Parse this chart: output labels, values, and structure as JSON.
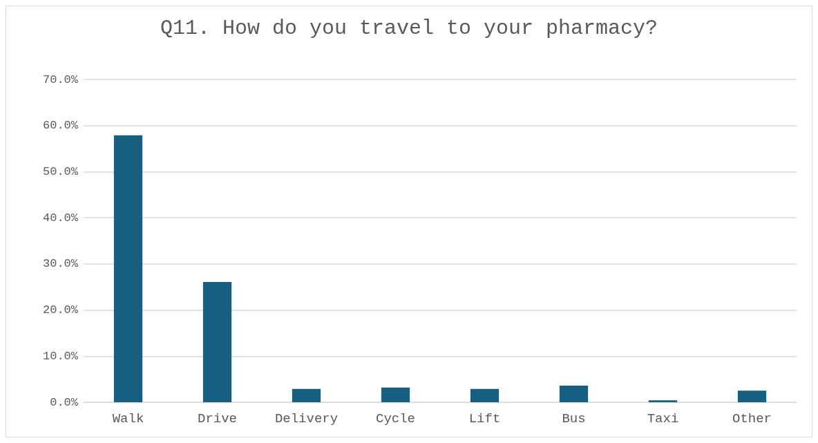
{
  "chart_data": {
    "type": "bar",
    "title": "Q11. How do you travel to your pharmacy?",
    "categories": [
      "Walk",
      "Drive",
      "Delivery",
      "Cycle",
      "Lift",
      "Bus",
      "Taxi",
      "Other"
    ],
    "values": [
      57.9,
      26.1,
      2.9,
      3.2,
      2.9,
      3.6,
      0.4,
      2.5
    ],
    "color": "#175f80",
    "ylim": [
      0,
      70
    ],
    "yticks": [
      {
        "value": 0,
        "label": "0.0%"
      },
      {
        "value": 10,
        "label": "10.0%"
      },
      {
        "value": 20,
        "label": "20.0%"
      },
      {
        "value": 30,
        "label": "30.0%"
      },
      {
        "value": 40,
        "label": "40.0%"
      },
      {
        "value": 50,
        "label": "50.0%"
      },
      {
        "value": 60,
        "label": "60.0%"
      },
      {
        "value": 70,
        "label": "70.0%"
      }
    ],
    "grid": "y"
  }
}
